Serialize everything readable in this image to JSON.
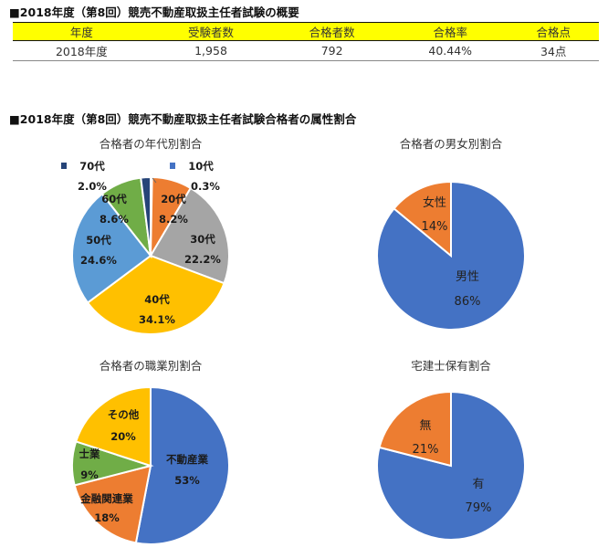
{
  "summary": {
    "title": "■2018年度（第8回）競売不動産取扱主任者試験の概要",
    "headers": [
      "年度",
      "受験者数",
      "合格者数",
      "合格率",
      "合格点"
    ],
    "row": [
      "2018年度",
      "1,958",
      "792",
      "40.44%",
      "34点"
    ]
  },
  "attributes_title": "■2018年度（第8回）競売不動産取扱主任者試験合格者の属性割合",
  "chart_data": [
    {
      "type": "pie",
      "title": "合格者の年代別割合",
      "categories": [
        "10代",
        "20代",
        "30代",
        "40代",
        "50代",
        "60代",
        "70代"
      ],
      "values": [
        0.3,
        8.2,
        22.2,
        34.1,
        24.6,
        8.6,
        2.0
      ],
      "labels": [
        "0.3%",
        "8.2%",
        "22.2%",
        "34.1%",
        "24.6%",
        "8.6%",
        "2.0%"
      ],
      "colors": [
        "#4472c4",
        "#ed7d31",
        "#a5a5a5",
        "#ffc000",
        "#5b9bd5",
        "#70ad47",
        "#264478"
      ],
      "label_style": "bold"
    },
    {
      "type": "pie",
      "title": "合格者の男女別割合",
      "categories": [
        "男性",
        "女性"
      ],
      "values": [
        86,
        14
      ],
      "labels": [
        "86%",
        "14%"
      ],
      "colors": [
        "#4472c4",
        "#ed7d31"
      ],
      "label_style": "normal"
    },
    {
      "type": "pie",
      "title": "合格者の職業別割合",
      "categories": [
        "不動産業",
        "金融関連業",
        "士業",
        "その他"
      ],
      "values": [
        53,
        18,
        9,
        20
      ],
      "labels": [
        "53%",
        "18%",
        "9%",
        "20%"
      ],
      "colors": [
        "#4472c4",
        "#ed7d31",
        "#70ad47",
        "#ffc000"
      ],
      "label_style": "bold"
    },
    {
      "type": "pie",
      "title": "宅建士保有割合",
      "categories": [
        "有",
        "無"
      ],
      "values": [
        79,
        21
      ],
      "labels": [
        "79%",
        "21%"
      ],
      "colors": [
        "#4472c4",
        "#ed7d31"
      ],
      "label_style": "normal"
    }
  ]
}
